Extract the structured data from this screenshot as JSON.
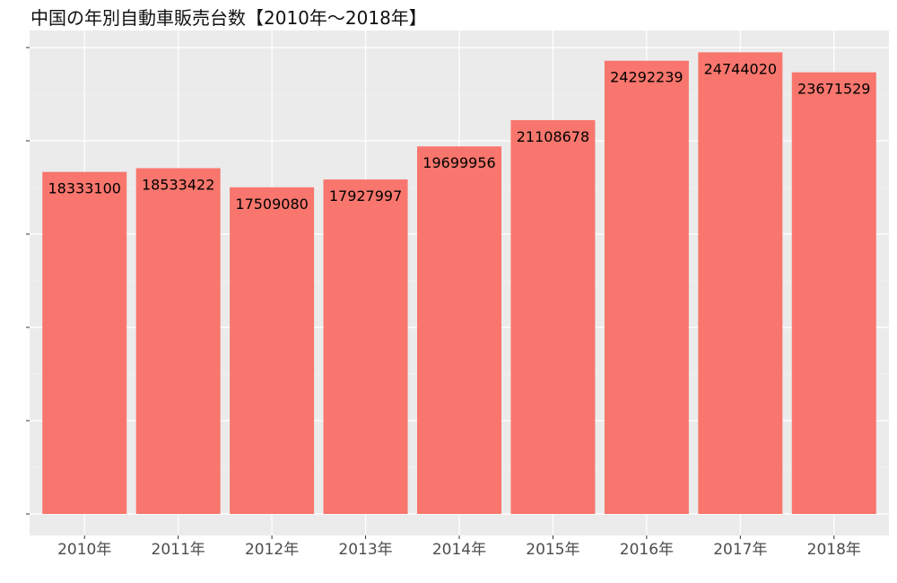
{
  "chart_data": {
    "type": "bar",
    "title": "中国の年別自動車販売台数【2010年～2018年】",
    "xlabel": "",
    "ylabel": "",
    "categories": [
      "2010年",
      "2011年",
      "2012年",
      "2013年",
      "2014年",
      "2015年",
      "2016年",
      "2017年",
      "2018年"
    ],
    "values": [
      18333100,
      18533422,
      17509080,
      17927997,
      19699956,
      21108678,
      24292239,
      24744020,
      23671529
    ],
    "data_labels": [
      "18333100",
      "18533422",
      "17509080",
      "17927997",
      "19699956",
      "21108678",
      "24292239",
      "24744020",
      "23671529"
    ],
    "ylim": [
      0,
      25000000
    ],
    "y_tick_labels_visible": false,
    "grid": true,
    "legend": "none",
    "colors": {
      "bar": "#F8766D",
      "panel_background": "#EBEBEB",
      "grid_major": "#FFFFFF",
      "grid_minor": "#F5F5F5",
      "axis_text": "#4D4D4D",
      "label_text": "#000000"
    }
  }
}
